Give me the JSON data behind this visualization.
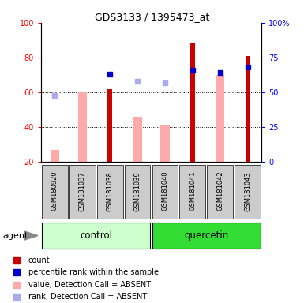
{
  "title": "GDS3133 / 1395473_at",
  "samples": [
    "GSM180920",
    "GSM181037",
    "GSM181038",
    "GSM181039",
    "GSM181040",
    "GSM181041",
    "GSM181042",
    "GSM181043"
  ],
  "red_bars": [
    null,
    null,
    62,
    null,
    null,
    88,
    null,
    81
  ],
  "pink_bars": [
    27,
    60,
    null,
    46,
    41,
    null,
    70,
    null
  ],
  "blue_squares": [
    null,
    null,
    63,
    null,
    null,
    66,
    64,
    68
  ],
  "lightblue_squares": [
    48,
    null,
    null,
    58,
    57,
    null,
    null,
    null
  ],
  "left_ylim": [
    20,
    100
  ],
  "right_ylim": [
    0,
    100
  ],
  "left_yticks": [
    20,
    40,
    60,
    80,
    100
  ],
  "right_yticks": [
    0,
    25,
    50,
    75,
    100
  ],
  "right_yticklabels": [
    "0",
    "25",
    "50",
    "75",
    "100%"
  ],
  "colors": {
    "red": "#cc0000",
    "pink": "#ffaaaa",
    "blue": "#0000cc",
    "lightblue": "#aaaaee",
    "control_bg": "#ccffcc",
    "quercetin_bg": "#33dd33",
    "sample_bg": "#cccccc"
  }
}
